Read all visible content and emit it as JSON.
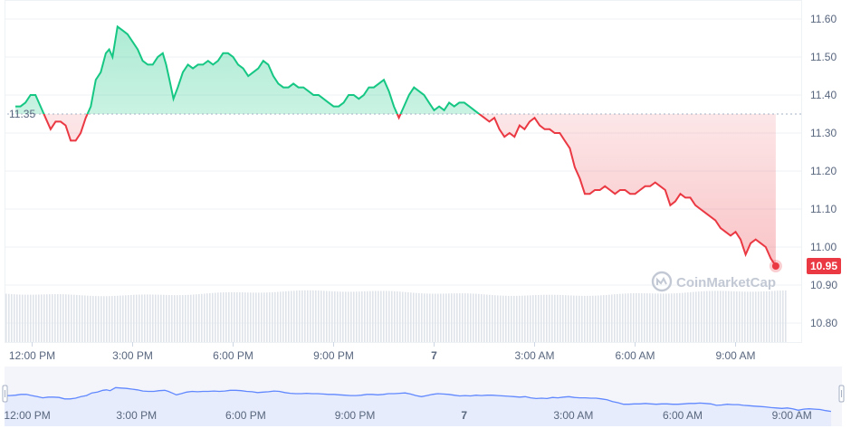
{
  "chart_data": {
    "type": "line",
    "baseline": {
      "value": 11.35,
      "label": "11.35"
    },
    "last_price": {
      "value": 10.95,
      "label": "10.95"
    },
    "watermark": "CoinMarketCap",
    "y_axis": {
      "min": 10.75,
      "max": 11.65,
      "ticks": [
        "11.60",
        "11.50",
        "11.40",
        "11.30",
        "11.20",
        "11.10",
        "11.00",
        "10.90",
        "10.80"
      ],
      "tick_values": [
        11.6,
        11.5,
        11.4,
        11.3,
        11.2,
        11.1,
        11.0,
        10.9,
        10.8
      ]
    },
    "x_axis": {
      "hour_min": 0,
      "hour_max": 23,
      "ticks": [
        {
          "label": "12:00 PM",
          "hour": 0.5,
          "bold": false
        },
        {
          "label": "3:00 PM",
          "hour": 3.5,
          "bold": false
        },
        {
          "label": "6:00 PM",
          "hour": 6.5,
          "bold": false
        },
        {
          "label": "9:00 PM",
          "hour": 9.5,
          "bold": false
        },
        {
          "label": "7",
          "hour": 12.5,
          "bold": true
        },
        {
          "label": "3:00 AM",
          "hour": 15.5,
          "bold": false
        },
        {
          "label": "6:00 AM",
          "hour": 18.5,
          "bold": false
        },
        {
          "label": "9:00 AM",
          "hour": 21.5,
          "bold": false
        }
      ]
    },
    "navigator_ticks": [
      "12:00 PM",
      "3:00 PM",
      "6:00 PM",
      "9:00 PM",
      "7",
      "3:00 AM",
      "6:00 AM",
      "9:00 AM"
    ],
    "colors": {
      "up": "#16c784",
      "down": "#ea3943",
      "navigator_line": "#6188ff",
      "navigator_fill": "#e8eeff"
    },
    "price_points": [
      [
        0.0,
        11.37
      ],
      [
        0.15,
        11.37
      ],
      [
        0.3,
        11.38
      ],
      [
        0.45,
        11.4
      ],
      [
        0.6,
        11.4
      ],
      [
        0.75,
        11.37
      ],
      [
        0.9,
        11.34
      ],
      [
        1.05,
        11.31
      ],
      [
        1.2,
        11.33
      ],
      [
        1.35,
        11.33
      ],
      [
        1.5,
        11.32
      ],
      [
        1.65,
        11.28
      ],
      [
        1.8,
        11.28
      ],
      [
        1.95,
        11.3
      ],
      [
        2.1,
        11.34
      ],
      [
        2.25,
        11.37
      ],
      [
        2.4,
        11.44
      ],
      [
        2.55,
        11.46
      ],
      [
        2.7,
        11.51
      ],
      [
        2.8,
        11.52
      ],
      [
        2.9,
        11.5
      ],
      [
        3.05,
        11.58
      ],
      [
        3.2,
        11.57
      ],
      [
        3.35,
        11.56
      ],
      [
        3.5,
        11.54
      ],
      [
        3.65,
        11.52
      ],
      [
        3.8,
        11.49
      ],
      [
        3.95,
        11.48
      ],
      [
        4.1,
        11.48
      ],
      [
        4.25,
        11.5
      ],
      [
        4.4,
        11.51
      ],
      [
        4.5,
        11.48
      ],
      [
        4.6,
        11.44
      ],
      [
        4.72,
        11.39
      ],
      [
        4.85,
        11.42
      ],
      [
        5.0,
        11.46
      ],
      [
        5.15,
        11.48
      ],
      [
        5.3,
        11.47
      ],
      [
        5.45,
        11.48
      ],
      [
        5.6,
        11.48
      ],
      [
        5.75,
        11.49
      ],
      [
        5.9,
        11.48
      ],
      [
        6.05,
        11.49
      ],
      [
        6.2,
        11.51
      ],
      [
        6.35,
        11.51
      ],
      [
        6.5,
        11.5
      ],
      [
        6.65,
        11.48
      ],
      [
        6.8,
        11.47
      ],
      [
        6.95,
        11.45
      ],
      [
        7.1,
        11.46
      ],
      [
        7.25,
        11.47
      ],
      [
        7.4,
        11.49
      ],
      [
        7.55,
        11.48
      ],
      [
        7.7,
        11.45
      ],
      [
        7.85,
        11.43
      ],
      [
        8.0,
        11.42
      ],
      [
        8.15,
        11.42
      ],
      [
        8.3,
        11.43
      ],
      [
        8.45,
        11.42
      ],
      [
        8.6,
        11.42
      ],
      [
        8.75,
        11.41
      ],
      [
        8.9,
        11.4
      ],
      [
        9.05,
        11.4
      ],
      [
        9.2,
        11.39
      ],
      [
        9.35,
        11.38
      ],
      [
        9.5,
        11.37
      ],
      [
        9.65,
        11.37
      ],
      [
        9.8,
        11.38
      ],
      [
        9.95,
        11.4
      ],
      [
        10.1,
        11.4
      ],
      [
        10.25,
        11.39
      ],
      [
        10.4,
        11.4
      ],
      [
        10.55,
        11.42
      ],
      [
        10.7,
        11.42
      ],
      [
        10.85,
        11.43
      ],
      [
        11.0,
        11.44
      ],
      [
        11.15,
        11.41
      ],
      [
        11.3,
        11.37
      ],
      [
        11.45,
        11.34
      ],
      [
        11.6,
        11.37
      ],
      [
        11.75,
        11.4
      ],
      [
        11.9,
        11.42
      ],
      [
        12.05,
        11.41
      ],
      [
        12.2,
        11.4
      ],
      [
        12.35,
        11.38
      ],
      [
        12.5,
        11.36
      ],
      [
        12.65,
        11.37
      ],
      [
        12.8,
        11.36
      ],
      [
        12.95,
        11.38
      ],
      [
        13.1,
        11.37
      ],
      [
        13.25,
        11.38
      ],
      [
        13.4,
        11.38
      ],
      [
        13.55,
        11.37
      ],
      [
        13.7,
        11.36
      ],
      [
        13.85,
        11.35
      ],
      [
        14.0,
        11.34
      ],
      [
        14.15,
        11.33
      ],
      [
        14.3,
        11.34
      ],
      [
        14.45,
        11.31
      ],
      [
        14.6,
        11.29
      ],
      [
        14.75,
        11.3
      ],
      [
        14.9,
        11.29
      ],
      [
        15.05,
        11.32
      ],
      [
        15.2,
        11.31
      ],
      [
        15.35,
        11.33
      ],
      [
        15.5,
        11.34
      ],
      [
        15.65,
        11.32
      ],
      [
        15.8,
        11.31
      ],
      [
        15.95,
        11.31
      ],
      [
        16.1,
        11.3
      ],
      [
        16.25,
        11.3
      ],
      [
        16.4,
        11.28
      ],
      [
        16.55,
        11.26
      ],
      [
        16.7,
        11.21
      ],
      [
        16.85,
        11.18
      ],
      [
        17.0,
        11.14
      ],
      [
        17.15,
        11.14
      ],
      [
        17.3,
        11.15
      ],
      [
        17.45,
        11.15
      ],
      [
        17.6,
        11.16
      ],
      [
        17.75,
        11.15
      ],
      [
        17.9,
        11.14
      ],
      [
        18.05,
        11.15
      ],
      [
        18.2,
        11.15
      ],
      [
        18.35,
        11.14
      ],
      [
        18.5,
        11.14
      ],
      [
        18.65,
        11.15
      ],
      [
        18.8,
        11.16
      ],
      [
        18.95,
        11.16
      ],
      [
        19.1,
        11.17
      ],
      [
        19.25,
        11.16
      ],
      [
        19.4,
        11.15
      ],
      [
        19.55,
        11.11
      ],
      [
        19.7,
        11.12
      ],
      [
        19.85,
        11.14
      ],
      [
        20.0,
        11.13
      ],
      [
        20.15,
        11.13
      ],
      [
        20.3,
        11.11
      ],
      [
        20.45,
        11.1
      ],
      [
        20.6,
        11.09
      ],
      [
        20.75,
        11.08
      ],
      [
        20.9,
        11.07
      ],
      [
        21.05,
        11.05
      ],
      [
        21.2,
        11.04
      ],
      [
        21.35,
        11.03
      ],
      [
        21.5,
        11.04
      ],
      [
        21.65,
        11.02
      ],
      [
        21.8,
        10.98
      ],
      [
        21.95,
        11.01
      ],
      [
        22.1,
        11.02
      ],
      [
        22.25,
        11.01
      ],
      [
        22.4,
        11.0
      ],
      [
        22.55,
        10.97
      ],
      [
        22.7,
        10.95
      ]
    ],
    "volume_level": 0.55
  }
}
